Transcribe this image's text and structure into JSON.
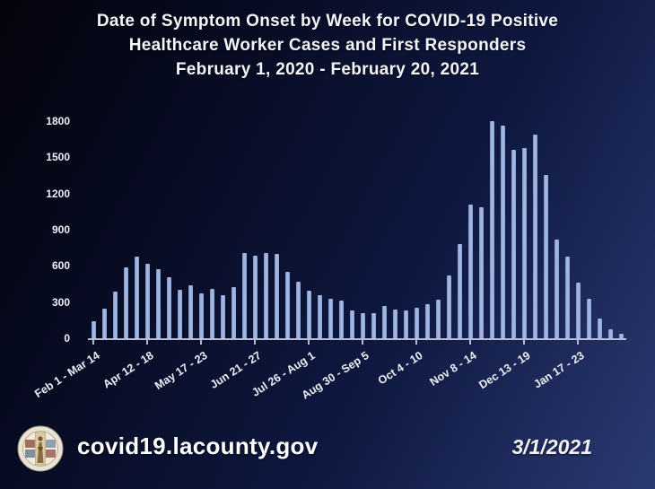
{
  "title": {
    "line1": "Date of Symptom Onset by Week for COVID-19 Positive",
    "line2": "Healthcare Worker Cases and First Responders",
    "line3": "February 1, 2020 - February 20, 2021"
  },
  "footer": {
    "url": "covid19.lacounty.gov",
    "date": "3/1/2021",
    "seal_alt": "Los Angeles County seal"
  },
  "colors": {
    "background_dark": "#04040c",
    "background_blue": "#2b3a72",
    "bar_fill": "#8ba3d4",
    "bar_highlight": "#a9bde6",
    "axis_line": "#b6bdd2",
    "text": "#f2f3f7"
  },
  "chart_data": {
    "type": "bar",
    "title": "Date of Symptom Onset by Week for COVID-19 Positive Healthcare Worker Cases and First Responders, February 1, 2020 - February 20, 2021",
    "xlabel": "",
    "ylabel": "",
    "ylim": [
      0,
      1800
    ],
    "yticks": [
      0,
      300,
      600,
      900,
      1200,
      1500,
      1800
    ],
    "grid": false,
    "legend": null,
    "bar_count": 50,
    "x_tick_every": 5,
    "x_tick_labels": [
      "Feb 1 - Mar 14",
      "Apr 12 - 18",
      "May 17 - 23",
      "Jun 21 - 27",
      "Jul 26 - Aug 1",
      "Aug 30 - Sep 5",
      "Oct 4 - 10",
      "Nov 8 - 14",
      "Dec 13 - 19",
      "Jan 17 - 23"
    ],
    "values": [
      140,
      245,
      390,
      585,
      680,
      615,
      570,
      505,
      400,
      440,
      370,
      410,
      355,
      425,
      710,
      685,
      705,
      700,
      550,
      470,
      395,
      355,
      330,
      310,
      230,
      205,
      210,
      265,
      240,
      230,
      255,
      285,
      320,
      520,
      780,
      1110,
      1085,
      1800,
      1760,
      1560,
      1580,
      1690,
      1350,
      820,
      680,
      460,
      330,
      160,
      75,
      35
    ]
  }
}
